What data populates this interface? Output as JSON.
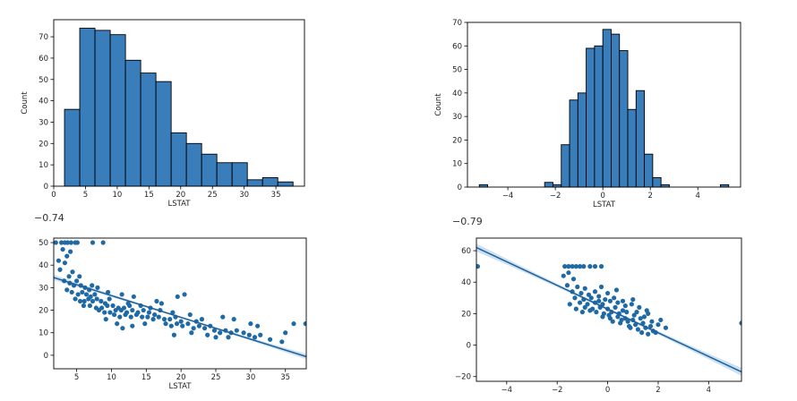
{
  "colors": {
    "bar_fill": "#3a7dbb",
    "bar_edge": "#000000",
    "point": "#1f6aa5",
    "fit_line": "#1f5f98",
    "ci_band": "#a9cbe8"
  },
  "chart_data": [
    {
      "type": "bar",
      "subtype": "histogram",
      "xlabel": "LSTAT",
      "ylabel": "Count",
      "xlim": [
        0,
        39.5
      ],
      "ylim": [
        0,
        78
      ],
      "xticks": [
        "0",
        "5",
        "10",
        "15",
        "20",
        "25",
        "30",
        "35"
      ],
      "yticks": [
        "0",
        "10",
        "20",
        "30",
        "40",
        "50",
        "60",
        "70"
      ],
      "bins": [
        {
          "x0": 1.7,
          "x1": 4.1,
          "count": 36
        },
        {
          "x0": 4.1,
          "x1": 6.5,
          "count": 74
        },
        {
          "x0": 6.5,
          "x1": 8.9,
          "count": 73
        },
        {
          "x0": 8.9,
          "x1": 11.3,
          "count": 71
        },
        {
          "x0": 11.3,
          "x1": 13.7,
          "count": 59
        },
        {
          "x0": 13.7,
          "x1": 16.1,
          "count": 53
        },
        {
          "x0": 16.1,
          "x1": 18.5,
          "count": 49
        },
        {
          "x0": 18.5,
          "x1": 20.9,
          "count": 25
        },
        {
          "x0": 20.9,
          "x1": 23.3,
          "count": 20
        },
        {
          "x0": 23.3,
          "x1": 25.7,
          "count": 15
        },
        {
          "x0": 25.7,
          "x1": 28.1,
          "count": 11
        },
        {
          "x0": 28.1,
          "x1": 30.5,
          "count": 11
        },
        {
          "x0": 30.5,
          "x1": 32.9,
          "count": 3
        },
        {
          "x0": 32.9,
          "x1": 35.3,
          "count": 4
        },
        {
          "x0": 35.3,
          "x1": 37.7,
          "count": 2
        }
      ]
    },
    {
      "type": "bar",
      "subtype": "histogram",
      "xlabel": "LSTAT",
      "ylabel": "Count",
      "xlim": [
        -5.7,
        5.8
      ],
      "ylim": [
        0,
        70
      ],
      "xticks": [
        "−4",
        "−2",
        "0",
        "2",
        "4"
      ],
      "yticks": [
        "0",
        "10",
        "20",
        "30",
        "40",
        "50",
        "60",
        "70"
      ],
      "bins": [
        {
          "x0": -5.2,
          "x1": -4.85,
          "count": 1
        },
        {
          "x0": -2.45,
          "x1": -2.1,
          "count": 2
        },
        {
          "x0": -2.1,
          "x1": -1.75,
          "count": 1
        },
        {
          "x0": -1.75,
          "x1": -1.4,
          "count": 18
        },
        {
          "x0": -1.4,
          "x1": -1.05,
          "count": 37
        },
        {
          "x0": -1.05,
          "x1": -0.7,
          "count": 40
        },
        {
          "x0": -0.7,
          "x1": -0.35,
          "count": 59
        },
        {
          "x0": -0.35,
          "x1": 0.0,
          "count": 60
        },
        {
          "x0": 0.0,
          "x1": 0.35,
          "count": 67
        },
        {
          "x0": 0.35,
          "x1": 0.7,
          "count": 65
        },
        {
          "x0": 0.7,
          "x1": 1.05,
          "count": 58
        },
        {
          "x0": 1.05,
          "x1": 1.4,
          "count": 33
        },
        {
          "x0": 1.4,
          "x1": 1.75,
          "count": 41
        },
        {
          "x0": 1.75,
          "x1": 2.1,
          "count": 14
        },
        {
          "x0": 2.1,
          "x1": 2.45,
          "count": 4
        },
        {
          "x0": 2.45,
          "x1": 2.8,
          "count": 1
        },
        {
          "x0": 4.95,
          "x1": 5.3,
          "count": 1
        }
      ]
    },
    {
      "type": "scatter",
      "annotation": "−0.74",
      "xlabel": "LSTAT",
      "ylabel": "",
      "xlim": [
        1.7,
        38.0
      ],
      "ylim": [
        -6,
        52
      ],
      "xticks": [
        "5",
        "10",
        "15",
        "20",
        "25",
        "30",
        "35"
      ],
      "yticks": [
        "0",
        "10",
        "20",
        "30",
        "40",
        "50"
      ],
      "fit_line": {
        "x": [
          1.7,
          38.0
        ],
        "y": [
          34.5,
          -0.6
        ]
      },
      "ci_width": 1.2,
      "points": [
        [
          2.0,
          50
        ],
        [
          2.8,
          50
        ],
        [
          3.3,
          50
        ],
        [
          3.7,
          50
        ],
        [
          4.2,
          50
        ],
        [
          4.8,
          50
        ],
        [
          5.1,
          50
        ],
        [
          7.3,
          50
        ],
        [
          8.8,
          50
        ],
        [
          3.0,
          47
        ],
        [
          3.6,
          44
        ],
        [
          4.1,
          46
        ],
        [
          2.4,
          42
        ],
        [
          3.3,
          41
        ],
        [
          2.6,
          38
        ],
        [
          4.4,
          37
        ],
        [
          3.9,
          35
        ],
        [
          5.4,
          35
        ],
        [
          3.2,
          33
        ],
        [
          4.0,
          32
        ],
        [
          4.6,
          31
        ],
        [
          5.0,
          33
        ],
        [
          5.6,
          31
        ],
        [
          6.2,
          30
        ],
        [
          6.8,
          29
        ],
        [
          3.6,
          29
        ],
        [
          4.3,
          28
        ],
        [
          5.2,
          27
        ],
        [
          5.8,
          28
        ],
        [
          6.4,
          27
        ],
        [
          7.0,
          26
        ],
        [
          7.6,
          27
        ],
        [
          4.8,
          25
        ],
        [
          5.5,
          24
        ],
        [
          6.1,
          24
        ],
        [
          6.7,
          25
        ],
        [
          7.3,
          24
        ],
        [
          7.9,
          25
        ],
        [
          8.5,
          24
        ],
        [
          9.1,
          23
        ],
        [
          9.7,
          25
        ],
        [
          6.0,
          22
        ],
        [
          6.9,
          22
        ],
        [
          7.8,
          21
        ],
        [
          8.6,
          21
        ],
        [
          9.4,
          22
        ],
        [
          10.2,
          22
        ],
        [
          11.0,
          21
        ],
        [
          11.8,
          21
        ],
        [
          12.6,
          22
        ],
        [
          8.2,
          20
        ],
        [
          9.0,
          19
        ],
        [
          9.8,
          19
        ],
        [
          10.6,
          20
        ],
        [
          11.4,
          20
        ],
        [
          12.2,
          19
        ],
        [
          13.0,
          20
        ],
        [
          13.8,
          19
        ],
        [
          14.6,
          20
        ],
        [
          15.4,
          19
        ],
        [
          16.2,
          18
        ],
        [
          10.4,
          18
        ],
        [
          11.2,
          17
        ],
        [
          12.0,
          18
        ],
        [
          12.8,
          17
        ],
        [
          13.6,
          18
        ],
        [
          14.4,
          17
        ],
        [
          15.2,
          17
        ],
        [
          16.0,
          16
        ],
        [
          16.8,
          17
        ],
        [
          17.6,
          16
        ],
        [
          18.4,
          16
        ],
        [
          19.2,
          17
        ],
        [
          20.0,
          15
        ],
        [
          12.4,
          23
        ],
        [
          14.2,
          22
        ],
        [
          15.6,
          21
        ],
        [
          17.0,
          20
        ],
        [
          18.8,
          19
        ],
        [
          21.3,
          18
        ],
        [
          7.2,
          31
        ],
        [
          8.0,
          30
        ],
        [
          9.5,
          28
        ],
        [
          11.5,
          27
        ],
        [
          13.2,
          26
        ],
        [
          16.5,
          24
        ],
        [
          17.2,
          23
        ],
        [
          19.5,
          26
        ],
        [
          20.5,
          27
        ],
        [
          17.8,
          14
        ],
        [
          18.6,
          13
        ],
        [
          19.4,
          14
        ],
        [
          20.2,
          13
        ],
        [
          21.0,
          14
        ],
        [
          21.8,
          12
        ],
        [
          22.6,
          13
        ],
        [
          23.4,
          12
        ],
        [
          24.2,
          13
        ],
        [
          22.2,
          15
        ],
        [
          23.0,
          16
        ],
        [
          24.8,
          11
        ],
        [
          25.6,
          10
        ],
        [
          26.4,
          11
        ],
        [
          27.2,
          10
        ],
        [
          28.0,
          11
        ],
        [
          23.8,
          9
        ],
        [
          25.0,
          8
        ],
        [
          26.8,
          8
        ],
        [
          29.0,
          10
        ],
        [
          29.8,
          9
        ],
        [
          30.6,
          8
        ],
        [
          31.4,
          9
        ],
        [
          32.8,
          7
        ],
        [
          34.5,
          6
        ],
        [
          26.0,
          17
        ],
        [
          27.6,
          16
        ],
        [
          30.0,
          14
        ],
        [
          31.0,
          13
        ],
        [
          36.2,
          14
        ],
        [
          37.9,
          14
        ],
        [
          35.0,
          10
        ],
        [
          19.0,
          9
        ],
        [
          21.5,
          10
        ],
        [
          14.8,
          14
        ],
        [
          13.0,
          13
        ],
        [
          10.8,
          14
        ],
        [
          9.2,
          16
        ],
        [
          11.6,
          12
        ]
      ]
    },
    {
      "type": "scatter",
      "annotation": "−0.79",
      "xlabel": "",
      "ylabel": "",
      "xlim": [
        -5.2,
        5.3
      ],
      "ylim": [
        -23,
        68
      ],
      "xticks": [
        "−4",
        "−2",
        "0",
        "2",
        "4"
      ],
      "yticks": [
        "−20",
        "0",
        "20",
        "40",
        "60"
      ],
      "fit_line": {
        "x": [
          -5.2,
          5.3
        ],
        "y": [
          62,
          -17
        ]
      },
      "ci_width": 2.5,
      "points": [
        [
          -5.15,
          50
        ],
        [
          -1.7,
          50
        ],
        [
          -1.55,
          50
        ],
        [
          -1.4,
          50
        ],
        [
          -1.25,
          50
        ],
        [
          -1.1,
          50
        ],
        [
          -0.95,
          50
        ],
        [
          -0.7,
          50
        ],
        [
          -0.5,
          50
        ],
        [
          -0.25,
          50
        ],
        [
          -1.75,
          44
        ],
        [
          -1.55,
          46
        ],
        [
          -1.35,
          42
        ],
        [
          -1.6,
          38
        ],
        [
          -1.2,
          37
        ],
        [
          -1.4,
          34
        ],
        [
          -0.9,
          36
        ],
        [
          -1.05,
          33
        ],
        [
          -0.75,
          32
        ],
        [
          -0.5,
          34
        ],
        [
          -1.3,
          30
        ],
        [
          -0.95,
          29
        ],
        [
          -0.65,
          30
        ],
        [
          -0.35,
          31
        ],
        [
          -0.1,
          29
        ],
        [
          -1.1,
          27
        ],
        [
          -0.8,
          26
        ],
        [
          -0.5,
          27
        ],
        [
          -0.2,
          26
        ],
        [
          0.1,
          28
        ],
        [
          0.4,
          27
        ],
        [
          -0.9,
          24
        ],
        [
          -0.6,
          23
        ],
        [
          -0.3,
          24
        ],
        [
          0.0,
          23
        ],
        [
          0.3,
          24
        ],
        [
          0.6,
          22
        ],
        [
          -0.45,
          21
        ],
        [
          -0.15,
          20
        ],
        [
          0.15,
          21
        ],
        [
          0.45,
          20
        ],
        [
          0.75,
          21
        ],
        [
          1.05,
          19
        ],
        [
          -0.2,
          18
        ],
        [
          0.1,
          17
        ],
        [
          0.4,
          18
        ],
        [
          0.7,
          17
        ],
        [
          1.0,
          16
        ],
        [
          1.3,
          17
        ],
        [
          0.2,
          15
        ],
        [
          0.5,
          14
        ],
        [
          0.8,
          15
        ],
        [
          1.1,
          13
        ],
        [
          1.4,
          14
        ],
        [
          1.7,
          12
        ],
        [
          0.9,
          11
        ],
        [
          1.2,
          10
        ],
        [
          1.5,
          11
        ],
        [
          1.8,
          9
        ],
        [
          1.35,
          8
        ],
        [
          1.6,
          7
        ],
        [
          1.9,
          8
        ],
        [
          0.25,
          30
        ],
        [
          0.6,
          28
        ],
        [
          0.95,
          26
        ],
        [
          1.25,
          24
        ],
        [
          1.55,
          22
        ],
        [
          -1.5,
          26
        ],
        [
          -1.25,
          23
        ],
        [
          -1.0,
          21
        ],
        [
          0.0,
          33
        ],
        [
          0.35,
          35
        ],
        [
          -0.25,
          37
        ],
        [
          1.0,
          29
        ],
        [
          1.45,
          18
        ],
        [
          1.75,
          15
        ],
        [
          2.1,
          16
        ],
        [
          2.3,
          11
        ],
        [
          5.3,
          14
        ],
        [
          -0.7,
          22
        ],
        [
          0.05,
          19
        ],
        [
          0.55,
          16
        ],
        [
          0.85,
          12
        ],
        [
          1.15,
          21
        ],
        [
          -0.35,
          28
        ],
        [
          0.7,
          25
        ],
        [
          1.6,
          20
        ],
        [
          2.0,
          13
        ]
      ]
    }
  ]
}
